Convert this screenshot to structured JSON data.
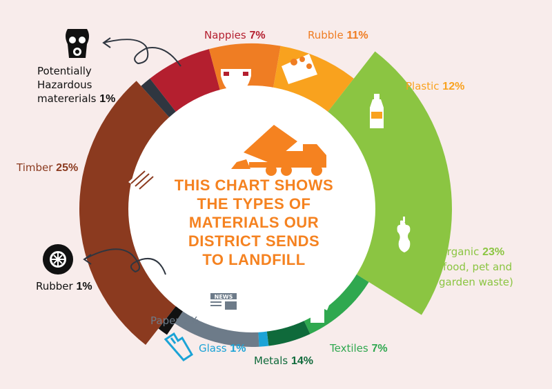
{
  "chart_data": {
    "type": "pie",
    "center_text": [
      "THIS CHART SHOWS",
      "THE TYPES OF",
      "MATERIALS OUR",
      "DISTRICT SENDS",
      "TO LANDFILL"
    ],
    "slices": [
      {
        "name": "Nappies",
        "value": 7,
        "value_label": "7%",
        "color": "#b41f2f",
        "icon": "nappy-icon"
      },
      {
        "name": "Rubble",
        "value": 11,
        "value_label": "11%",
        "color": "#ef7d23",
        "icon": "rubble-icon"
      },
      {
        "name": "Plastic",
        "value": 12,
        "value_label": "12%",
        "color": "#f9a21e",
        "icon": "bottle-icon"
      },
      {
        "name": "Organic",
        "value": 23,
        "value_label": "23%",
        "note": [
          "(food, pet and",
          "garden waste)"
        ],
        "color": "#8bc542",
        "icon": "apple-core-icon"
      },
      {
        "name": "Textiles",
        "value": 7,
        "value_label": "7%",
        "color": "#2fa84f",
        "icon": "tshirt-icon"
      },
      {
        "name": "Metals",
        "value": 14,
        "value_label": "14%",
        "color": "#0f6a3b",
        "icon": "can-icon"
      },
      {
        "name": "Glass",
        "value": 1,
        "value_label": "1%",
        "color": "#1ba3d6",
        "icon": "broken-bottle-icon"
      },
      {
        "name": "Paper",
        "value": 9,
        "value_label": "9%",
        "color": "#6d7b89",
        "icon": "newspaper-icon"
      },
      {
        "name": "Rubber",
        "value": 1,
        "value_label": "1%",
        "color": "#111111",
        "icon": "tyre-icon"
      },
      {
        "name": "Timber",
        "value": 25,
        "value_label": "25%",
        "color": "#8b3a1f",
        "icon": "timber-icon"
      },
      {
        "name": "Potentially Hazardous matererials",
        "value": 1,
        "value_label": "1%",
        "color": "#2f3640",
        "icon": "gas-mask-icon"
      }
    ],
    "label_lines": {
      "hazardous": [
        "Potentially",
        "Hazardous",
        "matererials"
      ]
    },
    "colors": {
      "center_text": "#f58220",
      "background": "#f8eceb"
    }
  }
}
